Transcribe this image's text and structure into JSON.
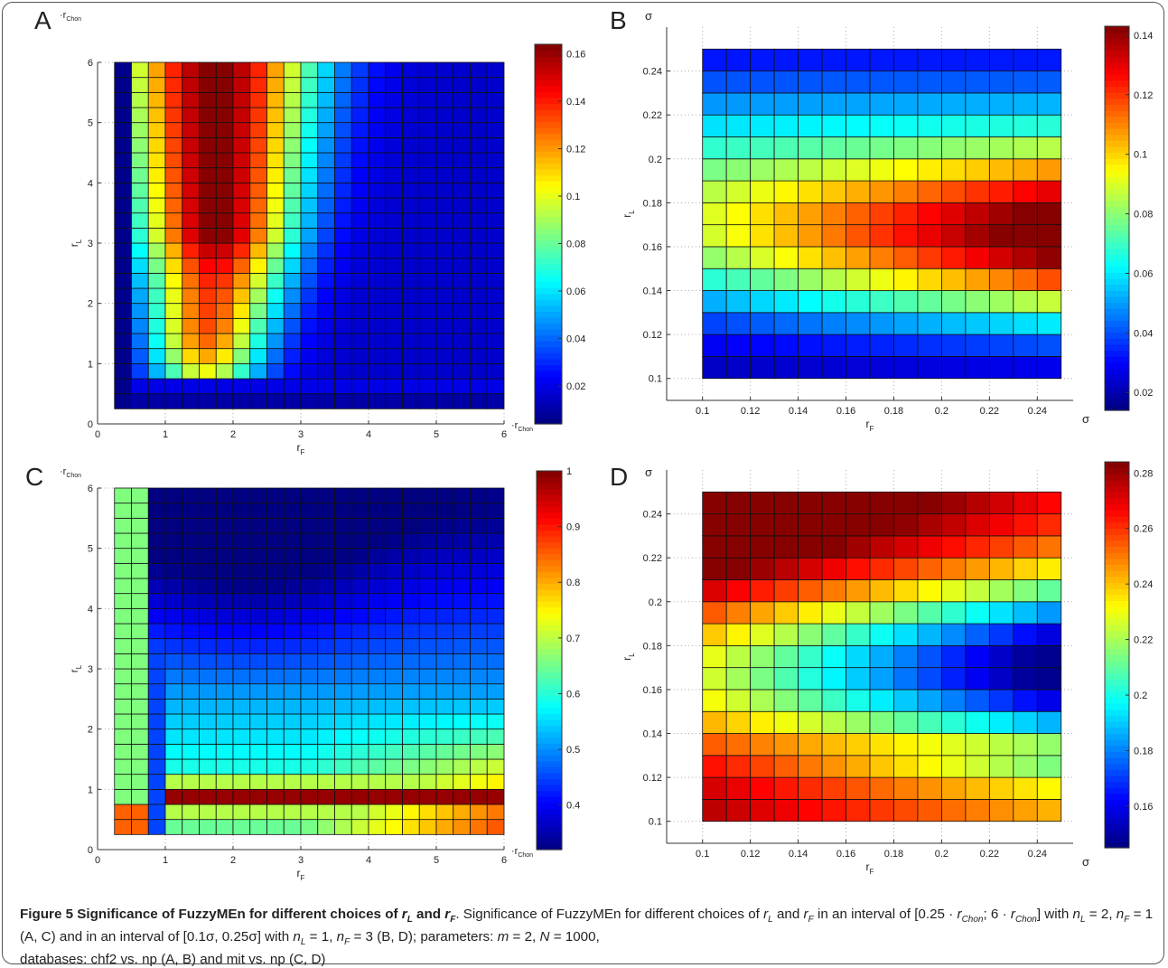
{
  "panels": [
    {
      "letter": "A",
      "xlabel": "r",
      "xlabel_sub": "F",
      "ylabel": "r",
      "ylabel_sub": "L",
      "x_unit": "·r",
      "x_unit_sub": "Chon",
      "y_unit": "·r",
      "y_unit_sub": "Chon",
      "x_ticks": [
        "0",
        "1",
        "2",
        "3",
        "4",
        "5",
        "6"
      ],
      "y_ticks": [
        "0",
        "1",
        "2",
        "3",
        "4",
        "5",
        "6"
      ],
      "cbar_ticks": [
        "0.02",
        "0.04",
        "0.06",
        "0.08",
        "0.1",
        "0.12",
        "0.14",
        "0.16"
      ]
    },
    {
      "letter": "B",
      "xlabel": "r",
      "xlabel_sub": "F",
      "ylabel": "r",
      "ylabel_sub": "L",
      "x_unit": "σ",
      "x_unit_sub": "",
      "y_unit": "σ",
      "y_unit_sub": "",
      "x_ticks": [
        "0.1",
        "0.12",
        "0.14",
        "0.16",
        "0.18",
        "0.2",
        "0.22",
        "0.24"
      ],
      "y_ticks": [
        "0.1",
        "0.12",
        "0.14",
        "0.16",
        "0.18",
        "0.2",
        "0.22",
        "0.24"
      ],
      "cbar_ticks": [
        "0.02",
        "0.04",
        "0.06",
        "0.08",
        "0.1",
        "0.12",
        "0.14"
      ]
    },
    {
      "letter": "C",
      "xlabel": "r",
      "xlabel_sub": "F",
      "ylabel": "r",
      "ylabel_sub": "L",
      "x_unit": "·r",
      "x_unit_sub": "Chon",
      "y_unit": "·r",
      "y_unit_sub": "Chon",
      "x_ticks": [
        "0",
        "1",
        "2",
        "3",
        "4",
        "5",
        "6"
      ],
      "y_ticks": [
        "0",
        "1",
        "2",
        "3",
        "4",
        "5",
        "6"
      ],
      "cbar_ticks": [
        "0.4",
        "0.5",
        "0.6",
        "0.7",
        "0.8",
        "0.9",
        "1"
      ]
    },
    {
      "letter": "D",
      "xlabel": "r",
      "xlabel_sub": "F",
      "ylabel": "r",
      "ylabel_sub": "L",
      "x_unit": "σ",
      "x_unit_sub": "",
      "y_unit": "σ",
      "y_unit_sub": "",
      "x_ticks": [
        "0.1",
        "0.12",
        "0.14",
        "0.16",
        "0.18",
        "0.2",
        "0.22",
        "0.24"
      ],
      "y_ticks": [
        "0.1",
        "0.12",
        "0.14",
        "0.16",
        "0.18",
        "0.2",
        "0.22",
        "0.24"
      ],
      "cbar_ticks": [
        "0.16",
        "0.18",
        "0.2",
        "0.22",
        "0.24",
        "0.26",
        "0.28"
      ]
    }
  ],
  "caption": {
    "title": "Figure 5 Significance of FuzzyMEn for different choices of",
    "title_r1": "r",
    "title_r1_sub": "L",
    "title_and": "and",
    "title_r2": "r",
    "title_r2_sub": "F",
    "line1_a": ". Significance of FuzzyMEn for different choices of",
    "rL": "r",
    "rL_sub": "L",
    "and": "and",
    "rF": "r",
    "rF_sub": "F",
    "line1_b": "in an interval",
    "line2_a": "of [0.25 ·",
    "rchon1": "r",
    "rchon1_sub": "Chon",
    "line2_b": "; 6 ·",
    "rchon2": "r",
    "rchon2_sub": "Chon",
    "line2_c": "] with",
    "nL1": "n",
    "nL1_sub": "L",
    "line2_d": "= 2,",
    "nF1": "n",
    "nF1_sub": "F",
    "line2_e": "= 1 (A, C) and in an interval of [0.1σ, 0.25σ] with",
    "nL2": "n",
    "nL2_sub": "L",
    "line2_f": "= 1,",
    "nF2": "n",
    "nF2_sub": "F",
    "line2_g": "= 3 (B, D); parameters:",
    "m": "m",
    "line2_h": "= 2,",
    "N": "N",
    "line2_i": "= 1000,",
    "line3": "databases: chf2 vs. np (A, B) and mit vs. np (C, D)"
  },
  "chart_data": [
    {
      "type": "heatmap",
      "panel": "A",
      "x_range": [
        0.25,
        6
      ],
      "y_range": [
        0.25,
        6
      ],
      "xlim": [
        0,
        6
      ],
      "ylim": [
        0,
        6
      ],
      "cell": 0.25,
      "colorbar_range": [
        0.004,
        0.164
      ],
      "colormap": "jet",
      "z_model": "approx: peak 0.16 near rF≈1.75, rL 3–6; low along rF<0.5 and rL<1"
    },
    {
      "type": "heatmap",
      "panel": "B",
      "x_range": [
        0.1,
        0.25
      ],
      "y_range": [
        0.1,
        0.25
      ],
      "xlim": [
        0.085,
        0.255
      ],
      "ylim": [
        0.09,
        0.26
      ],
      "cell": 0.01,
      "colorbar_range": [
        0.014,
        0.143
      ],
      "colormap": "jet",
      "z_model": "approx: peak 0.14 at rL≈0.16, rF=0.25; lowest at rL 0.1–0.12"
    },
    {
      "type": "heatmap",
      "panel": "C",
      "x_range": [
        0.25,
        6
      ],
      "y_range": [
        0.25,
        6
      ],
      "xlim": [
        0,
        6
      ],
      "ylim": [
        0,
        6
      ],
      "cell": 0.25,
      "colorbar_range": [
        0.32,
        1.0
      ],
      "colormap": "jet",
      "z_model": "approx: peak 1.0 along rL≈0.75–1; minimum ≈0.33 near rF≈2, rL≈5.5"
    },
    {
      "type": "heatmap",
      "panel": "D",
      "x_range": [
        0.1,
        0.25
      ],
      "y_range": [
        0.1,
        0.25
      ],
      "xlim": [
        0.085,
        0.255
      ],
      "ylim": [
        0.09,
        0.26
      ],
      "cell": 0.01,
      "colorbar_range": [
        0.145,
        0.284
      ],
      "colormap": "jet",
      "z_model": "approx: peak 0.28 at rL=0.1, rF=0.1; minimum ≈0.15 at rL≈0.17, rF=0.25"
    }
  ]
}
